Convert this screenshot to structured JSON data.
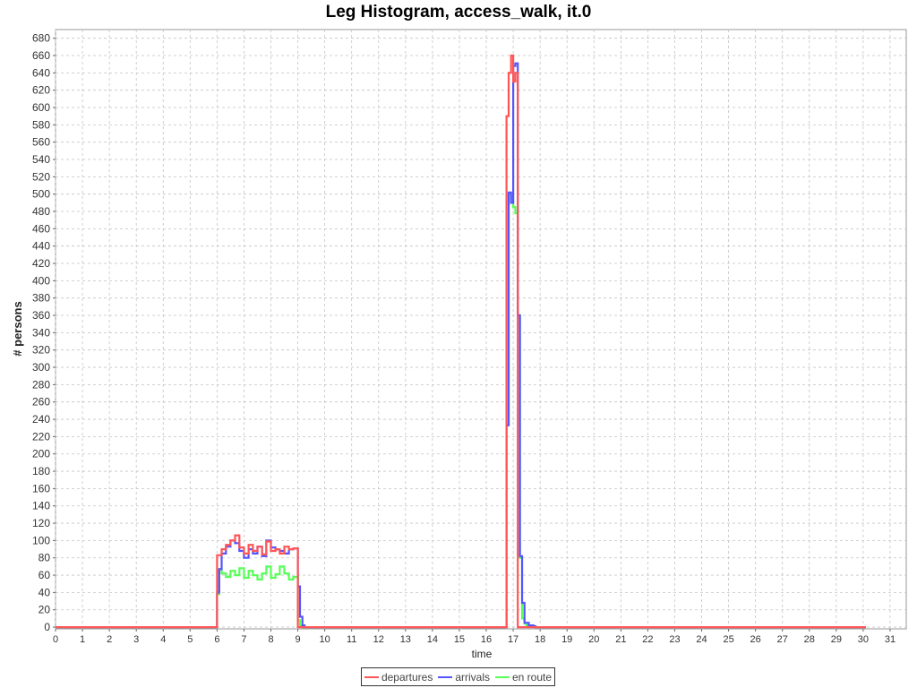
{
  "chart_data": {
    "type": "line",
    "title": "Leg Histogram, access_walk, it.0",
    "xlabel": "time",
    "ylabel": "# persons",
    "xlim": [
      0,
      31.6
    ],
    "ylim": [
      -2,
      690
    ],
    "x_ticks": [
      "0",
      "1",
      "2",
      "3",
      "4",
      "5",
      "6",
      "7",
      "8",
      "9",
      "10",
      "11",
      "12",
      "13",
      "14",
      "15",
      "16",
      "17",
      "18",
      "19",
      "20",
      "21",
      "22",
      "23",
      "24",
      "25",
      "26",
      "27",
      "28",
      "29",
      "30",
      "31"
    ],
    "y_ticks": [
      "0",
      "20",
      "40",
      "60",
      "80",
      "100",
      "120",
      "140",
      "160",
      "180",
      "200",
      "220",
      "240",
      "260",
      "280",
      "300",
      "320",
      "340",
      "360",
      "380",
      "400",
      "420",
      "440",
      "460",
      "480",
      "500",
      "520",
      "540",
      "560",
      "580",
      "600",
      "620",
      "640",
      "660",
      "680"
    ],
    "grid": true,
    "legend_position": "bottom-center",
    "bin_width_hours": 0.0833,
    "series": [
      {
        "name": "departures",
        "color": "#ff5555",
        "points": [
          [
            0,
            0
          ],
          [
            6.0,
            0
          ],
          [
            6.0,
            83
          ],
          [
            6.17,
            90
          ],
          [
            6.33,
            95
          ],
          [
            6.5,
            100
          ],
          [
            6.67,
            106
          ],
          [
            6.83,
            92
          ],
          [
            7.0,
            85
          ],
          [
            7.17,
            95
          ],
          [
            7.33,
            88
          ],
          [
            7.5,
            93
          ],
          [
            7.67,
            84
          ],
          [
            7.83,
            99
          ],
          [
            8.0,
            88
          ],
          [
            8.17,
            90
          ],
          [
            8.33,
            85
          ],
          [
            8.5,
            93
          ],
          [
            8.67,
            90
          ],
          [
            8.83,
            91
          ],
          [
            9.0,
            0
          ],
          [
            16.75,
            0
          ],
          [
            16.75,
            590
          ],
          [
            16.83,
            640
          ],
          [
            16.92,
            660
          ],
          [
            17.0,
            630
          ],
          [
            17.08,
            640
          ],
          [
            17.17,
            0
          ],
          [
            30.1,
            0
          ]
        ]
      },
      {
        "name": "arrivals",
        "color": "#5555ff",
        "points": [
          [
            0,
            0
          ],
          [
            6.0,
            0
          ],
          [
            6.0,
            40
          ],
          [
            6.08,
            67
          ],
          [
            6.17,
            85
          ],
          [
            6.33,
            93
          ],
          [
            6.5,
            100
          ],
          [
            6.67,
            97
          ],
          [
            6.83,
            88
          ],
          [
            7.0,
            80
          ],
          [
            7.17,
            90
          ],
          [
            7.33,
            85
          ],
          [
            7.5,
            93
          ],
          [
            7.67,
            82
          ],
          [
            7.83,
            100
          ],
          [
            8.0,
            92
          ],
          [
            8.17,
            90
          ],
          [
            8.33,
            88
          ],
          [
            8.5,
            85
          ],
          [
            8.67,
            90
          ],
          [
            8.83,
            91
          ],
          [
            9.0,
            47
          ],
          [
            9.08,
            12
          ],
          [
            9.17,
            2
          ],
          [
            9.25,
            0
          ],
          [
            16.75,
            0
          ],
          [
            16.75,
            233
          ],
          [
            16.83,
            502
          ],
          [
            16.92,
            490
          ],
          [
            17.0,
            648
          ],
          [
            17.08,
            651
          ],
          [
            17.17,
            360
          ],
          [
            17.25,
            82
          ],
          [
            17.33,
            28
          ],
          [
            17.42,
            5
          ],
          [
            17.58,
            2
          ],
          [
            17.75,
            1
          ],
          [
            17.83,
            0
          ],
          [
            30.1,
            0
          ]
        ]
      },
      {
        "name": "en route",
        "color": "#55ff55",
        "points": [
          [
            0,
            0
          ],
          [
            6.0,
            0
          ],
          [
            6.0,
            38
          ],
          [
            6.08,
            67
          ],
          [
            6.17,
            62
          ],
          [
            6.33,
            58
          ],
          [
            6.5,
            65
          ],
          [
            6.67,
            60
          ],
          [
            6.83,
            68
          ],
          [
            7.0,
            57
          ],
          [
            7.17,
            65
          ],
          [
            7.33,
            60
          ],
          [
            7.5,
            55
          ],
          [
            7.67,
            62
          ],
          [
            7.83,
            70
          ],
          [
            8.0,
            57
          ],
          [
            8.17,
            61
          ],
          [
            8.33,
            70
          ],
          [
            8.5,
            62
          ],
          [
            8.67,
            55
          ],
          [
            8.83,
            58
          ],
          [
            9.0,
            8
          ],
          [
            9.08,
            2
          ],
          [
            9.17,
            0
          ],
          [
            16.75,
            0
          ],
          [
            16.75,
            234
          ],
          [
            16.83,
            500
          ],
          [
            16.92,
            495
          ],
          [
            17.0,
            485
          ],
          [
            17.08,
            478
          ],
          [
            17.17,
            360
          ],
          [
            17.25,
            80
          ],
          [
            17.33,
            10
          ],
          [
            17.42,
            4
          ],
          [
            17.5,
            2
          ],
          [
            17.67,
            1
          ],
          [
            17.83,
            0
          ],
          [
            30.1,
            0
          ]
        ]
      }
    ]
  }
}
